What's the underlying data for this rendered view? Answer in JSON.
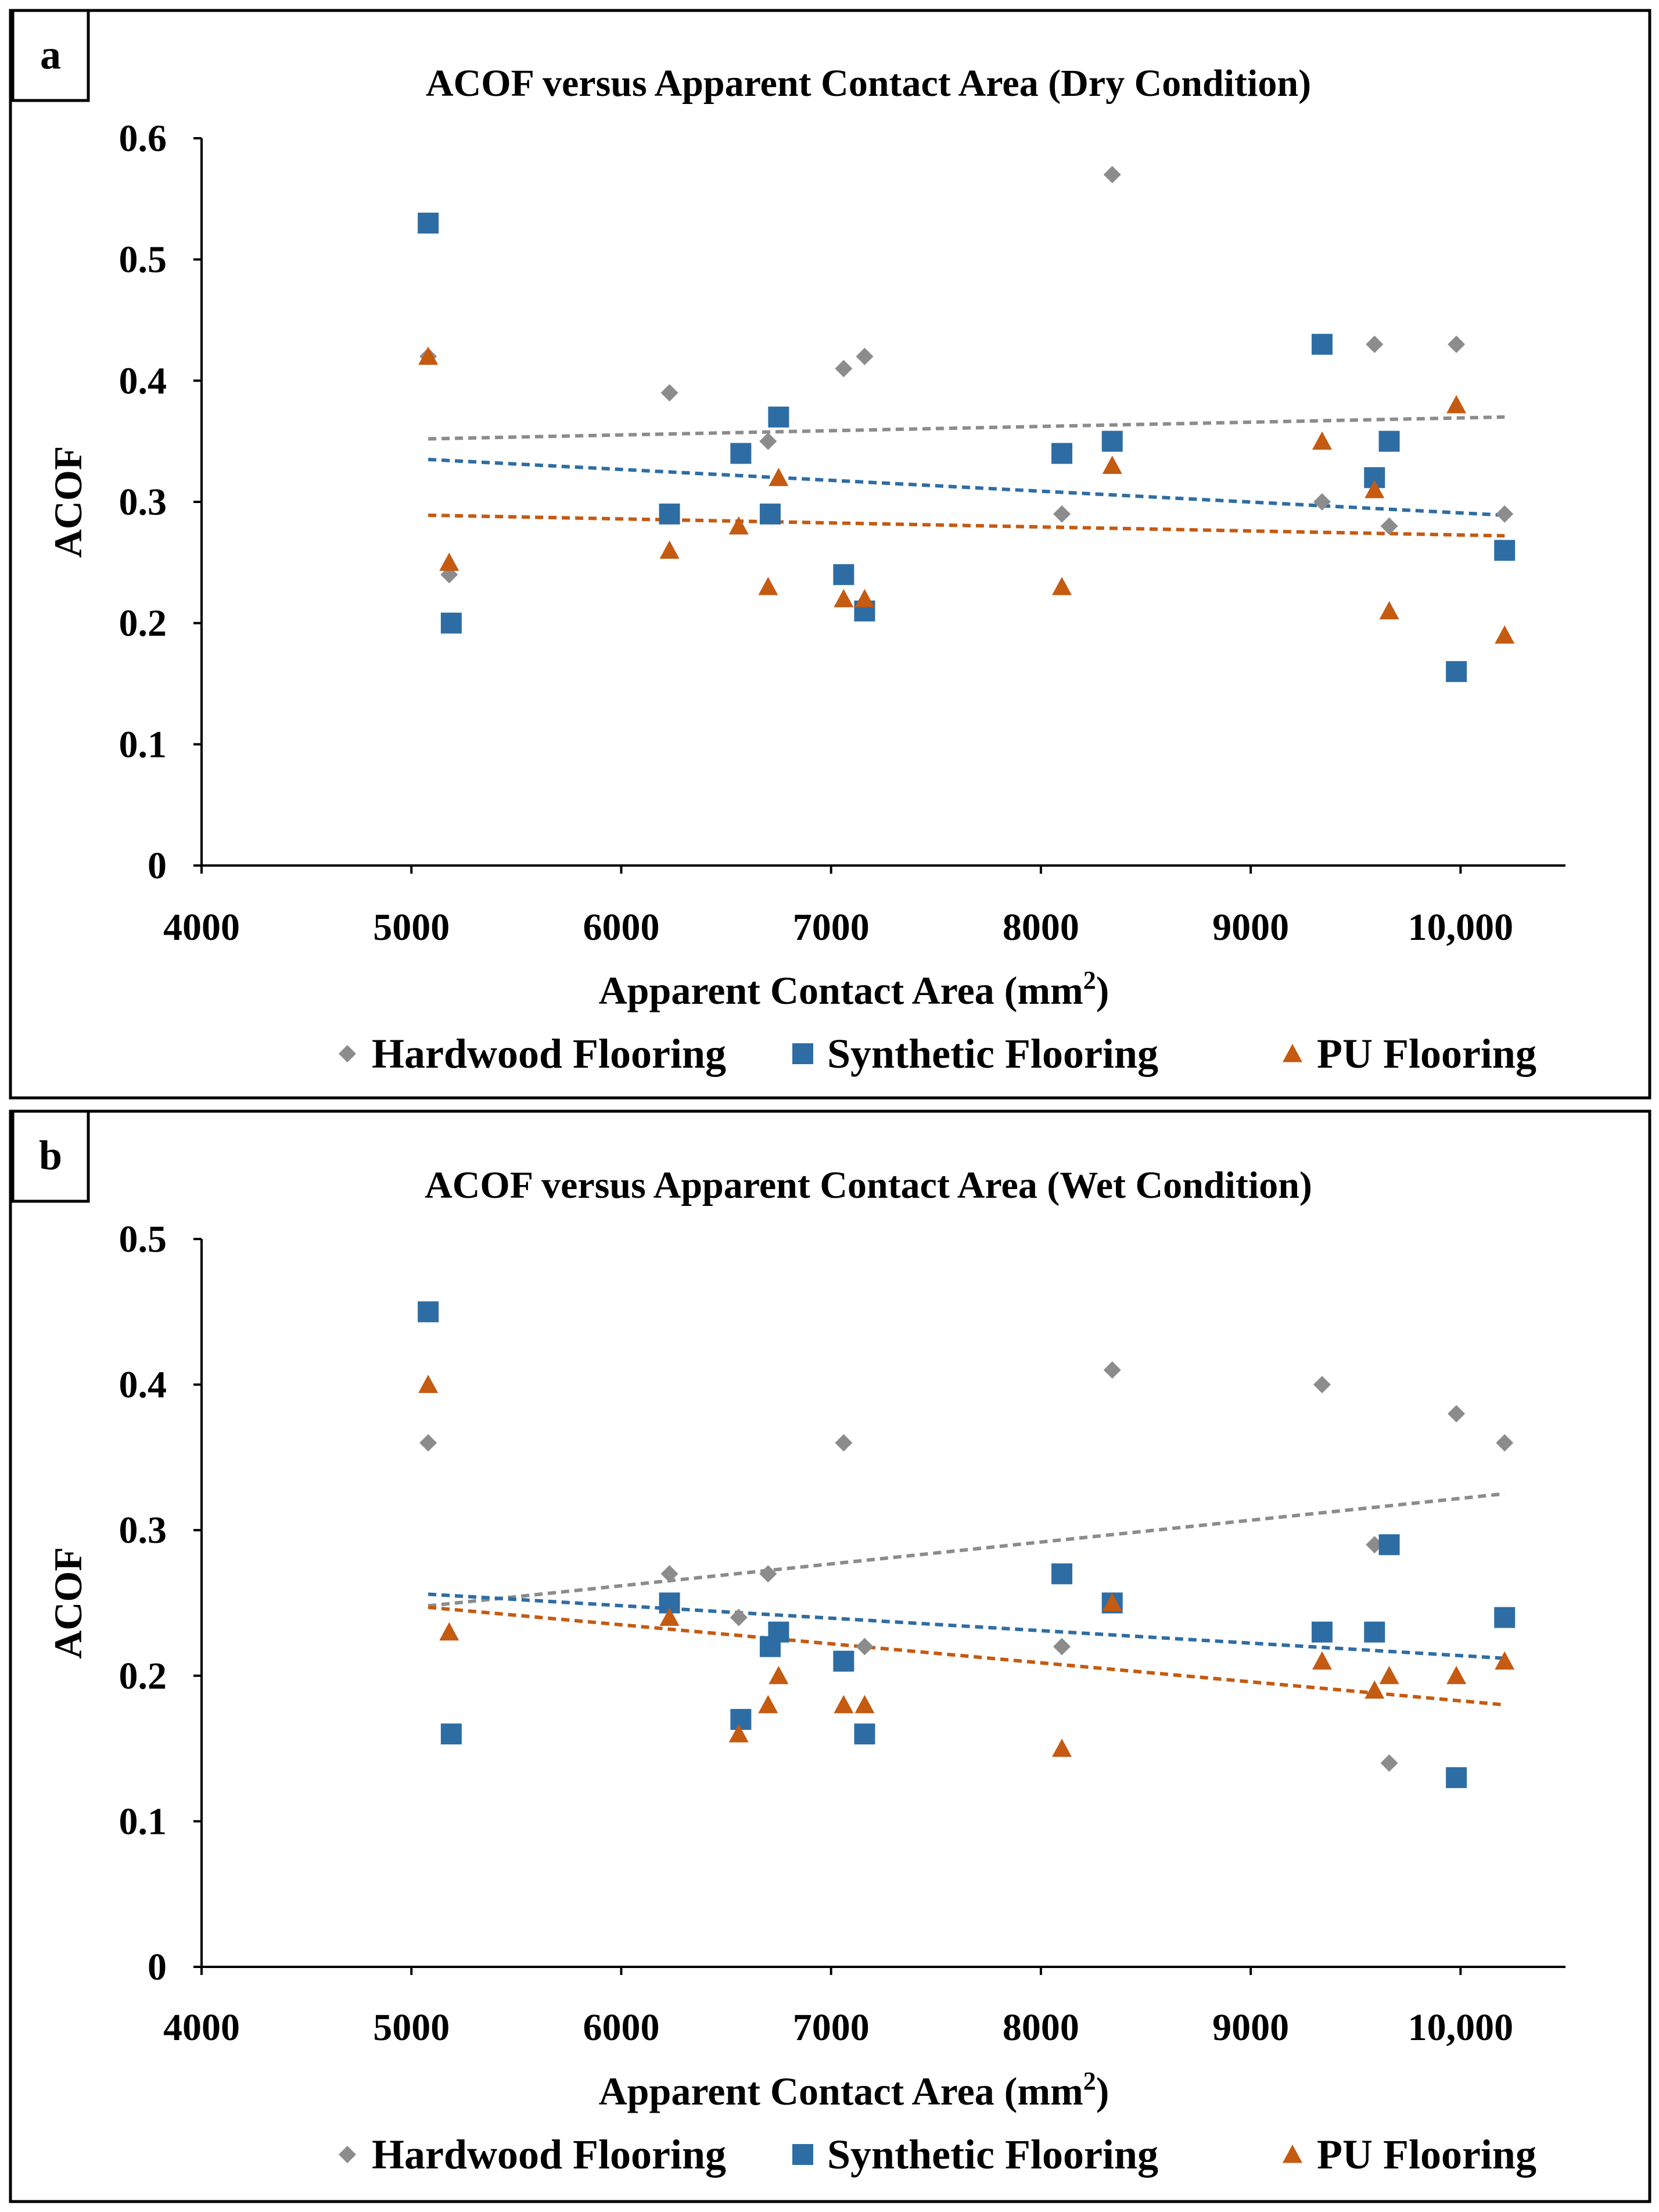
{
  "chart_data": [
    {
      "type": "scatter",
      "panel_label": "a",
      "title": "ACOF versus Apparent  Contact Area  (Dry Condition)",
      "xlabel": "Apparent  Contact Area  (mm",
      "xlabel_sup": "2",
      "xlabel_end": ")",
      "ylabel": "ACOF",
      "xlim": [
        4000,
        10500
      ],
      "ylim": [
        0,
        0.6
      ],
      "xticks": [
        4000,
        5000,
        6000,
        7000,
        8000,
        9000,
        10000
      ],
      "xtick_labels": [
        "4000",
        "5000",
        "6000",
        "7000",
        "8000",
        "9000",
        "10,000"
      ],
      "yticks": [
        0,
        0.1,
        0.2,
        0.3,
        0.4,
        0.5,
        0.6
      ],
      "ytick_labels": [
        "0",
        "0.1",
        "0.2",
        "0.3",
        "0.4",
        "0.5",
        "0.6"
      ],
      "legend_position": "bottom",
      "series": [
        {
          "name": "Hardwood Flooring",
          "marker": "diamond",
          "color": "#8c8c8c",
          "x": [
            5080,
            5180,
            6230,
            6700,
            7060,
            7160,
            8100,
            8340,
            9340,
            9590,
            9660,
            9980,
            10210
          ],
          "y": [
            0.42,
            0.24,
            0.39,
            0.35,
            0.41,
            0.42,
            0.29,
            0.57,
            0.3,
            0.43,
            0.28,
            0.43,
            0.29
          ],
          "trend": [
            0.352,
            0.37
          ]
        },
        {
          "name": "Synthetic Flooring",
          "marker": "square",
          "color": "#2e6da4",
          "x": [
            5080,
            5190,
            6230,
            6570,
            6710,
            6750,
            7060,
            7160,
            8100,
            8340,
            9340,
            9590,
            9660,
            9980,
            10210
          ],
          "y": [
            0.53,
            0.2,
            0.29,
            0.34,
            0.29,
            0.37,
            0.24,
            0.21,
            0.34,
            0.35,
            0.43,
            0.32,
            0.35,
            0.16,
            0.26
          ],
          "trend": [
            0.335,
            0.289
          ]
        },
        {
          "name": "PU Flooring",
          "marker": "triangle",
          "color": "#c55a11",
          "x": [
            5080,
            5180,
            6230,
            6560,
            6700,
            6750,
            7060,
            7160,
            8100,
            8340,
            9340,
            9590,
            9660,
            9980,
            10210
          ],
          "y": [
            0.42,
            0.25,
            0.26,
            0.28,
            0.23,
            0.32,
            0.22,
            0.22,
            0.23,
            0.33,
            0.35,
            0.31,
            0.21,
            0.38,
            0.19
          ],
          "trend": [
            0.289,
            0.272
          ]
        }
      ]
    },
    {
      "type": "scatter",
      "panel_label": "b",
      "title": "ACOF versus Apparent  Contact Area  (Wet  Condition)",
      "xlabel": "Apparent  Contact Area  (mm",
      "xlabel_sup": "2",
      "xlabel_end": ")",
      "ylabel": "ACOF",
      "xlim": [
        4000,
        10500
      ],
      "ylim": [
        0,
        0.5
      ],
      "xticks": [
        4000,
        5000,
        6000,
        7000,
        8000,
        9000,
        10000
      ],
      "xtick_labels": [
        "4000",
        "5000",
        "6000",
        "7000",
        "8000",
        "9000",
        "10,000"
      ],
      "yticks": [
        0,
        0.1,
        0.2,
        0.3,
        0.4,
        0.5
      ],
      "ytick_labels": [
        "0",
        "0.1",
        "0.2",
        "0.3",
        "0.4",
        "0.5"
      ],
      "legend_position": "bottom",
      "series": [
        {
          "name": "Hardwood Flooring",
          "marker": "diamond",
          "color": "#8c8c8c",
          "x": [
            5080,
            6230,
            6560,
            6700,
            7060,
            7160,
            8100,
            8340,
            9340,
            9590,
            9660,
            9980,
            10210
          ],
          "y": [
            0.36,
            0.27,
            0.24,
            0.27,
            0.36,
            0.22,
            0.22,
            0.41,
            0.4,
            0.29,
            0.14,
            0.38,
            0.36
          ],
          "trend": [
            0.248,
            0.325
          ]
        },
        {
          "name": "Synthetic Flooring",
          "marker": "square",
          "color": "#2e6da4",
          "x": [
            5080,
            5190,
            6230,
            6570,
            6710,
            6750,
            7060,
            7160,
            8100,
            8340,
            9340,
            9590,
            9660,
            9980,
            10210
          ],
          "y": [
            0.45,
            0.16,
            0.25,
            0.17,
            0.22,
            0.23,
            0.21,
            0.16,
            0.27,
            0.25,
            0.23,
            0.23,
            0.29,
            0.13,
            0.24
          ],
          "trend": [
            0.256,
            0.212
          ]
        },
        {
          "name": "PU Flooring",
          "marker": "triangle",
          "color": "#c55a11",
          "x": [
            5080,
            5180,
            6230,
            6560,
            6700,
            6750,
            7060,
            7160,
            8100,
            8340,
            9340,
            9590,
            9660,
            9980,
            10210
          ],
          "y": [
            0.4,
            0.23,
            0.24,
            0.16,
            0.18,
            0.2,
            0.18,
            0.18,
            0.15,
            0.25,
            0.21,
            0.19,
            0.2,
            0.2,
            0.21
          ],
          "trend": [
            0.247,
            0.18
          ]
        }
      ]
    }
  ]
}
